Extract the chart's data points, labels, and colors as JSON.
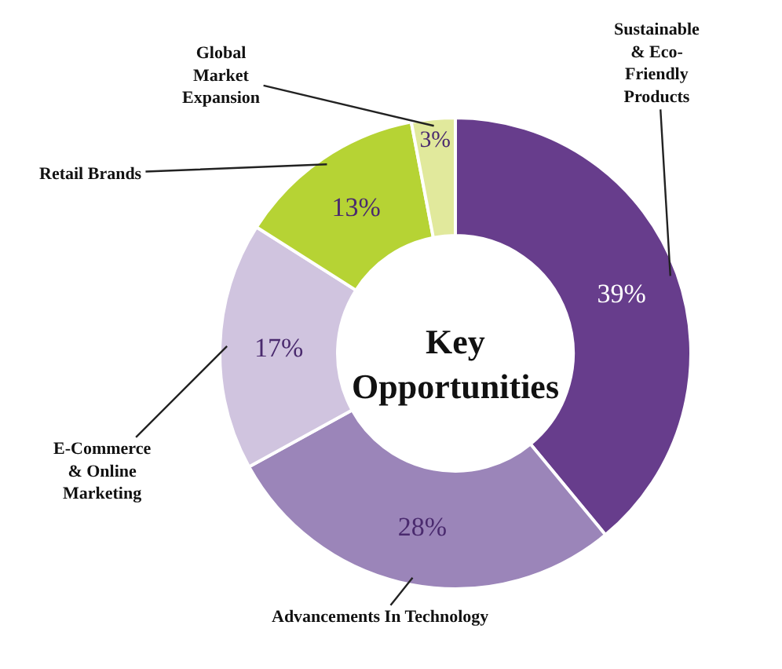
{
  "chart_data": {
    "type": "donut",
    "title": "Key Opportunities",
    "categories": [
      "Sustainable & Eco-Friendly Products",
      "Advancements In Technology",
      "E-Commerce & Online Marketing",
      "Retail Brands",
      "Global Market Expansion"
    ],
    "values": [
      39,
      28,
      17,
      13,
      3
    ],
    "value_labels": [
      "39%",
      "28%",
      "17%",
      "13%",
      "3%"
    ],
    "colors": [
      "#673d8c",
      "#9b85b9",
      "#d0c4df",
      "#b6d334",
      "#e1e99c"
    ],
    "legend": false
  }
}
